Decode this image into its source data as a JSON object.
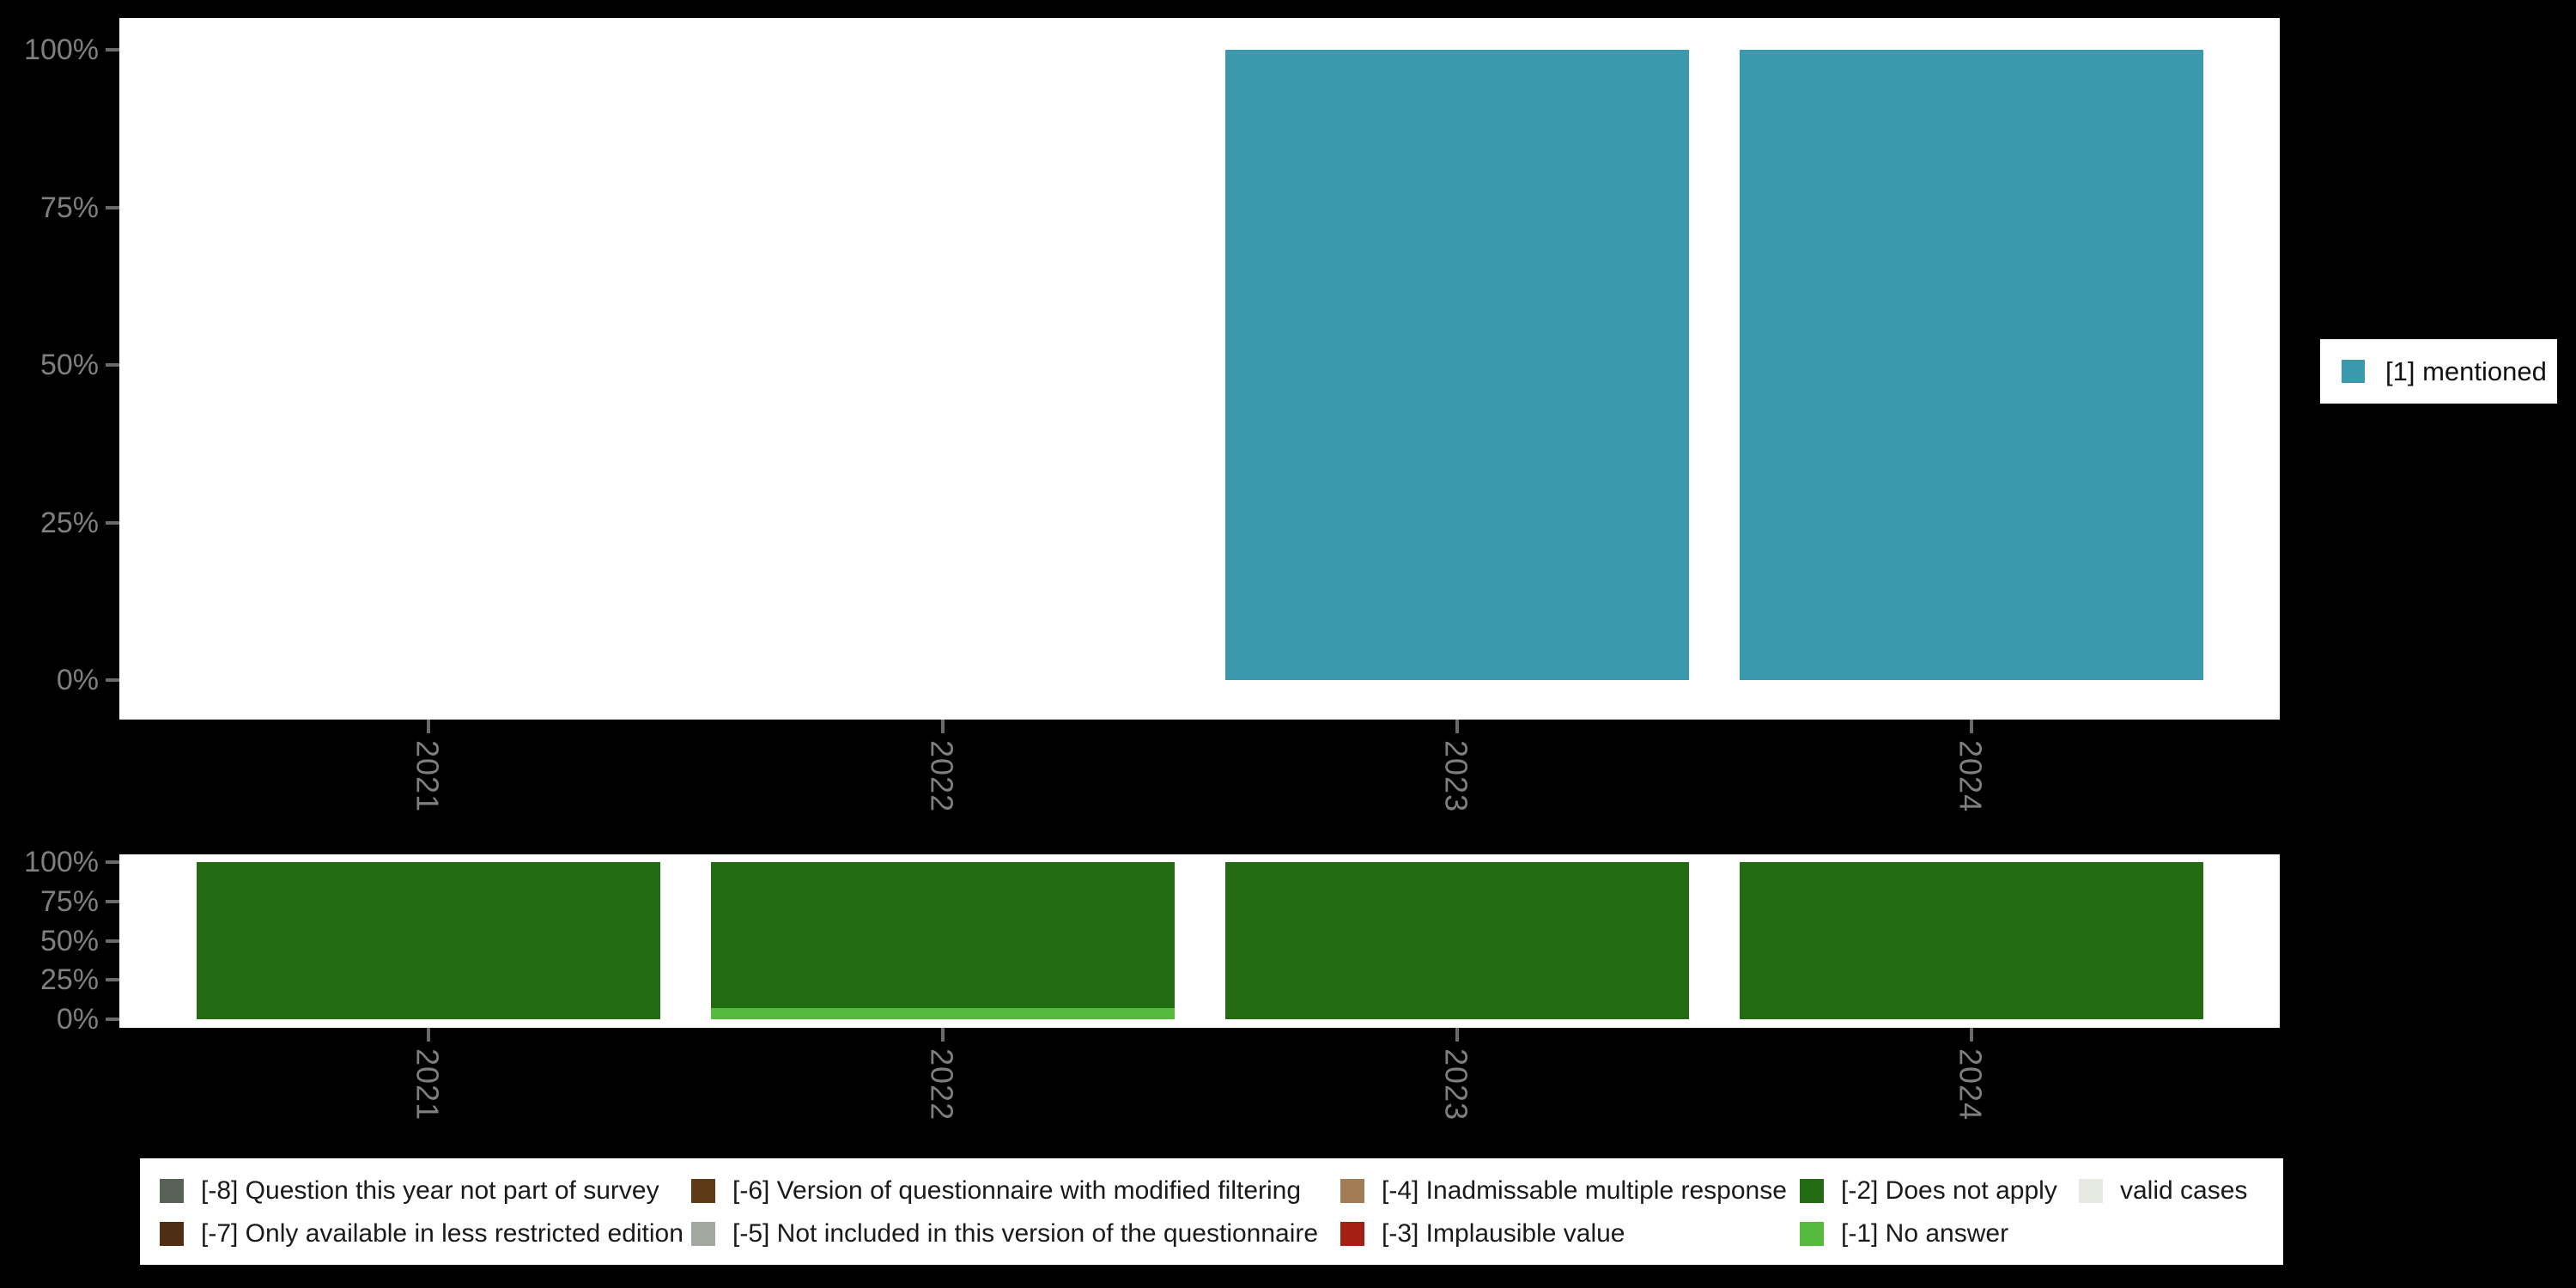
{
  "colors": {
    "background": "#000000",
    "panel_background": "#ffffff",
    "axis_label": "#7f7f7f",
    "tick_mark": "#6a6a6a",
    "legend_text": "#1a1a1a",
    "legend_background": "#ffffff"
  },
  "right_legend": {
    "items": [
      {
        "label": "[1] mentioned",
        "color": "#3a99ad"
      }
    ]
  },
  "missing_legend": {
    "rows": [
      [
        {
          "label": "[-8] Question this year not part of survey",
          "color": "#586157"
        },
        {
          "label": "[-6] Version of questionnaire with modified filtering",
          "color": "#5e3a16"
        },
        {
          "label": "[-4] Inadmissable multiple response",
          "color": "#a27c54"
        },
        {
          "label": "[-2] Does not apply",
          "color": "#226b10"
        },
        {
          "label": "valid cases",
          "color": "#e7e9e3"
        }
      ],
      [
        {
          "label": "[-7] Only available in less restricted edition",
          "color": "#4e2f16"
        },
        {
          "label": "[-5] Not included in this version of the questionnaire",
          "color": "#a2a89f"
        },
        {
          "label": "[-3] Implausible value",
          "color": "#a51f14"
        },
        {
          "label": "[-1] No answer",
          "color": "#56bb3c"
        }
      ]
    ]
  },
  "chart_data": [
    {
      "id": "valid-values",
      "type": "bar",
      "title": "",
      "xlabel": "",
      "ylabel": "",
      "categories": [
        "2021",
        "2022",
        "2023",
        "2024"
      ],
      "y_ticks": [
        {
          "label": "100%",
          "value": 100
        },
        {
          "label": "75%",
          "value": 75
        },
        {
          "label": "50%",
          "value": 50
        },
        {
          "label": "25%",
          "value": 25
        },
        {
          "label": "0%",
          "value": 0
        }
      ],
      "ylim": [
        0,
        100
      ],
      "grid": false,
      "legend_position": "right",
      "series": [
        {
          "name": "[1] mentioned",
          "color": "#3a99ad",
          "values": [
            0,
            0,
            100,
            100
          ]
        }
      ]
    },
    {
      "id": "missing-values",
      "type": "stacked-bar",
      "title": "",
      "xlabel": "",
      "ylabel": "",
      "categories": [
        "2021",
        "2022",
        "2023",
        "2024"
      ],
      "y_ticks": [
        {
          "label": "100%",
          "value": 100
        },
        {
          "label": "75%",
          "value": 75
        },
        {
          "label": "50%",
          "value": 50
        },
        {
          "label": "25%",
          "value": 25
        },
        {
          "label": "0%",
          "value": 0
        }
      ],
      "ylim": [
        0,
        100
      ],
      "grid": false,
      "stack_order": "bottom-to-top",
      "legend_position": "bottom",
      "series": [
        {
          "name": "[-1] No answer",
          "color": "#56bb3c",
          "values": [
            0,
            7,
            0,
            0
          ]
        },
        {
          "name": "[-2] Does not apply",
          "color": "#226b10",
          "values": [
            100,
            93,
            100,
            100
          ]
        }
      ]
    }
  ]
}
